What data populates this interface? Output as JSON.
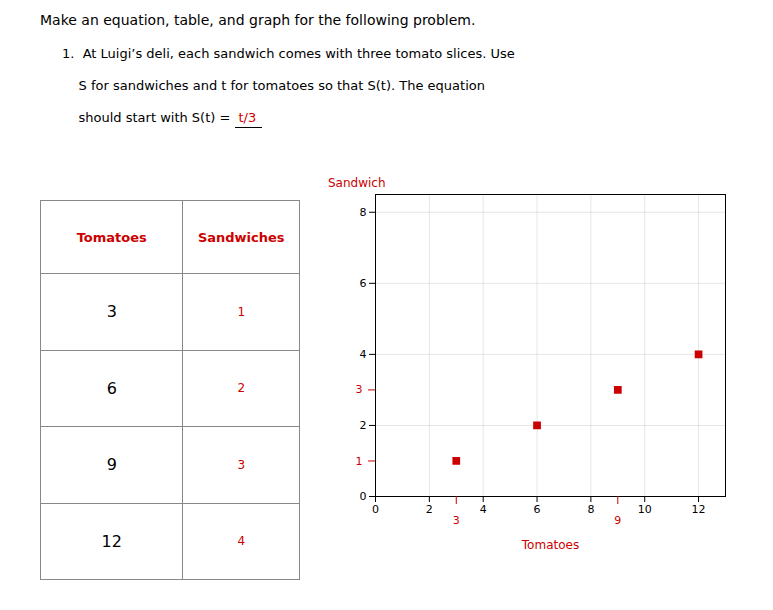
{
  "chart_data": [
    {
      "type": "text",
      "title": "Make an equation, table, and graph for the following problem.",
      "annotations": [
        {
          "text": "1.  At Luigi’s deli, each sandwich comes with three tomato slices. Use"
        },
        {
          "text": "    S for sandwiches and t for tomatoes so that S(t). The equation"
        },
        {
          "text": "    should start with S(t) = "
        },
        {
          "text": "t/3",
          "color": "#cc0000"
        }
      ]
    },
    {
      "type": "table",
      "columns": [
        "Tomatoes",
        "Sandwiches"
      ],
      "rows": [
        [
          3,
          1
        ],
        [
          6,
          2
        ],
        [
          9,
          3
        ],
        [
          12,
          4
        ]
      ],
      "color": "#cc0000"
    },
    {
      "type": "scatter",
      "x": [
        3,
        6,
        9,
        12
      ],
      "values": [
        1,
        2,
        3,
        4
      ],
      "color": "#cc0000",
      "marker": "square",
      "xlabel": "Tomatoes",
      "ylabel": "Sandwich",
      "xlim": [
        0,
        13
      ],
      "ylim": [
        0,
        8.5
      ],
      "xticks": [
        0,
        2,
        4,
        6,
        8,
        10,
        12
      ],
      "yticks": [
        0,
        2,
        4,
        6,
        8
      ],
      "highlight_xticks": [
        3,
        9
      ],
      "highlight_yticks": [
        1,
        3
      ],
      "grid": true
    }
  ]
}
